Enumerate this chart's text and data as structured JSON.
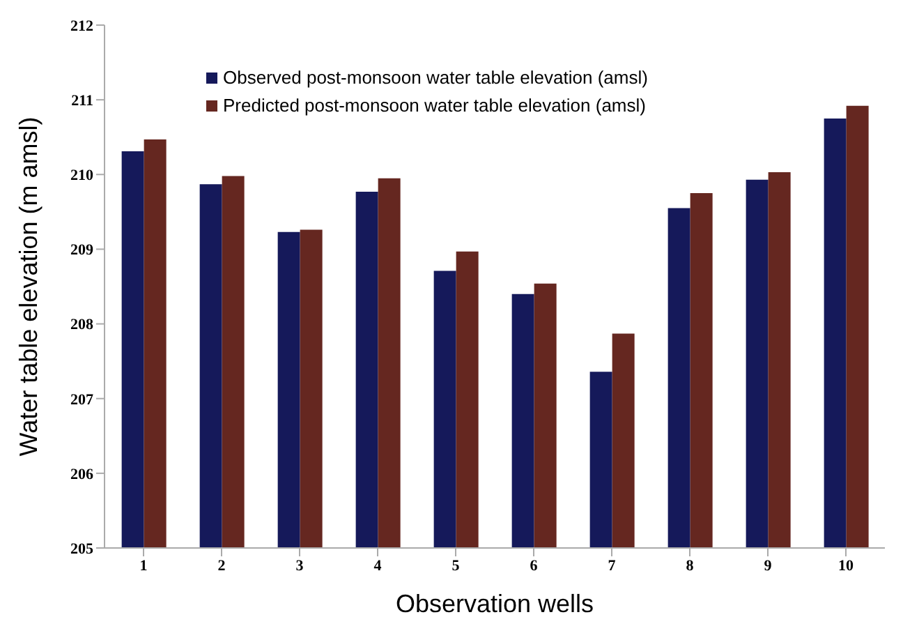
{
  "chart_data": {
    "type": "bar",
    "xlabel": "Observation wells",
    "ylabel": "Water table elevation (m amsl)",
    "categories": [
      "1",
      "2",
      "3",
      "4",
      "5",
      "6",
      "7",
      "8",
      "9",
      "10"
    ],
    "series": [
      {
        "name": "Observed post-monsoon water table elevation (amsl)",
        "color": "#15195a",
        "values": [
          210.31,
          209.87,
          209.23,
          209.77,
          208.71,
          208.4,
          207.36,
          209.55,
          209.93,
          210.75
        ]
      },
      {
        "name": "Predicted post-monsoon water table elevation (amsl)",
        "color": "#652720",
        "values": [
          210.47,
          209.98,
          209.26,
          209.95,
          208.97,
          208.54,
          207.87,
          209.75,
          210.03,
          210.92
        ]
      }
    ],
    "ylim": [
      205,
      212
    ],
    "yticks": [
      205,
      206,
      207,
      208,
      209,
      210,
      211,
      212
    ],
    "grid": false,
    "legend": "top left"
  }
}
